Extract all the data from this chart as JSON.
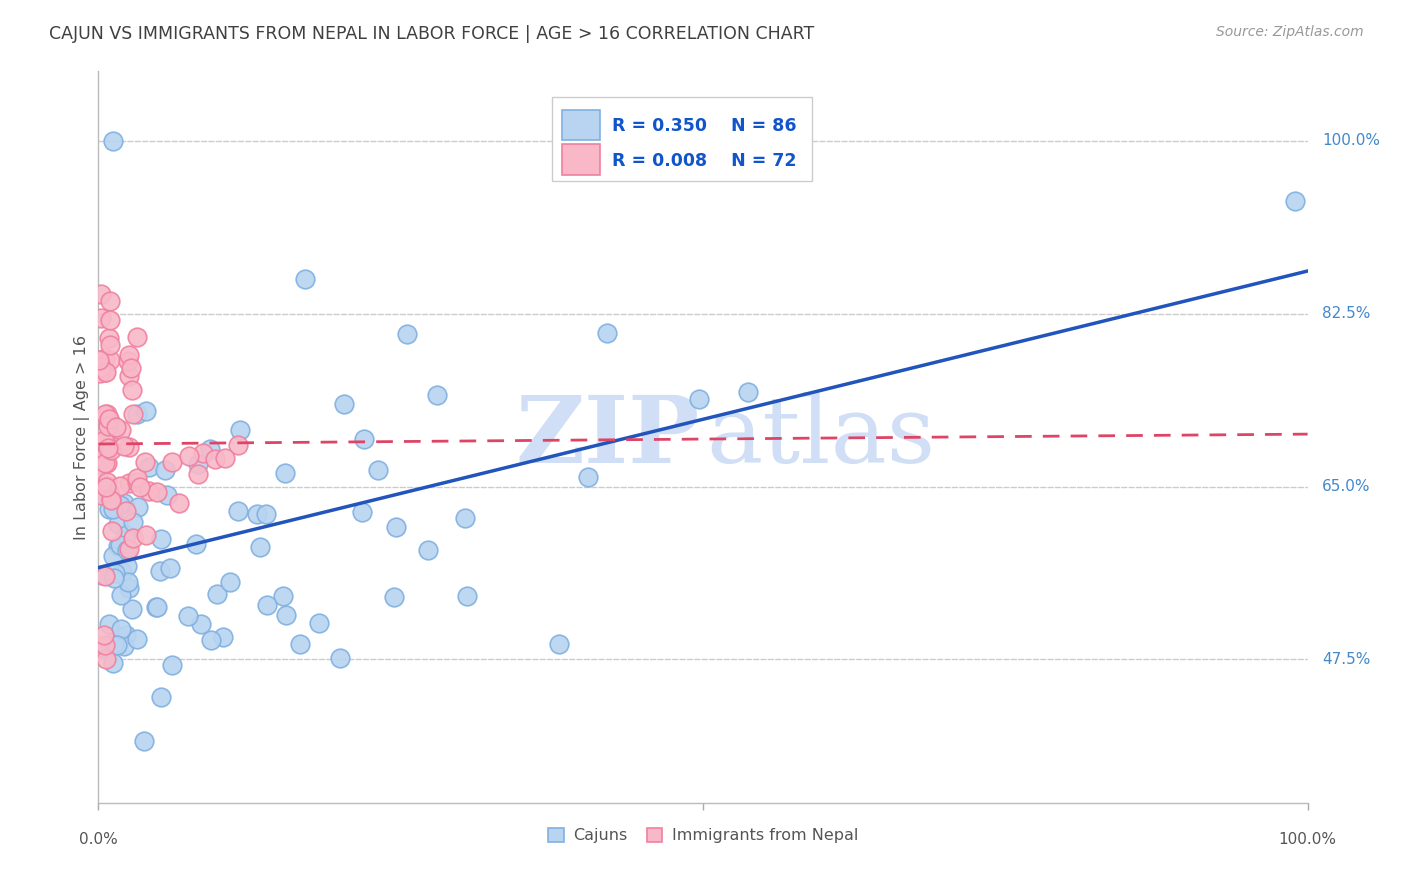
{
  "title": "CAJUN VS IMMIGRANTS FROM NEPAL IN LABOR FORCE | AGE > 16 CORRELATION CHART",
  "source": "Source: ZipAtlas.com",
  "ylabel": "In Labor Force | Age > 16",
  "ytick_labels": [
    "47.5%",
    "65.0%",
    "82.5%",
    "100.0%"
  ],
  "ytick_values": [
    0.475,
    0.65,
    0.825,
    1.0
  ],
  "xlim": [
    0.0,
    1.0
  ],
  "ylim": [
    0.33,
    1.07
  ],
  "cajun_R": 0.35,
  "cajun_N": 86,
  "nepal_R": 0.008,
  "nepal_N": 72,
  "cajun_dot_fill": "#B8D4F0",
  "cajun_dot_edge": "#80B0E0",
  "nepal_dot_fill": "#F8B8C8",
  "nepal_dot_edge": "#F080A0",
  "trendline_cajun_color": "#2255BB",
  "trendline_nepal_color": "#DD4466",
  "watermark_color": "#D0DFF5",
  "legend_text_color": "#1155CC",
  "background_color": "#FFFFFF",
  "grid_color": "#CCCCCC",
  "title_color": "#404040",
  "axis_label_color": "#555555",
  "right_tick_color": "#4488CC",
  "cajun_trendline_start_y": 0.568,
  "cajun_trendline_end_y": 0.868,
  "nepal_trendline_start_y": 0.693,
  "nepal_trendline_end_y": 0.703,
  "seed": 77
}
